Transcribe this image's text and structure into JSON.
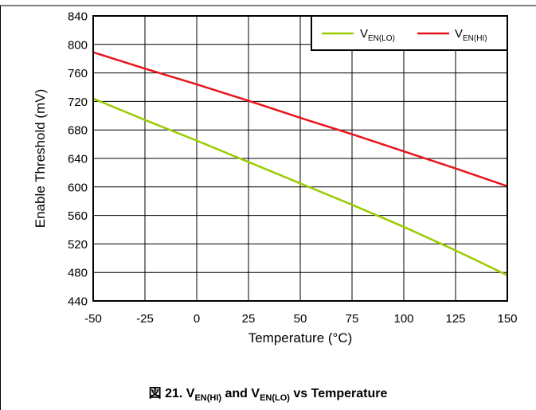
{
  "chart_data": {
    "type": "line",
    "xlabel": "Temperature (°C)",
    "ylabel": "Enable Threshold (mV)",
    "xlim": [
      -50,
      150
    ],
    "ylim": [
      440,
      840
    ],
    "xticks": [
      "-50",
      "-25",
      "0",
      "25",
      "50",
      "75",
      "100",
      "125",
      "150"
    ],
    "yticks": [
      "440",
      "480",
      "520",
      "560",
      "600",
      "640",
      "680",
      "720",
      "760",
      "800",
      "840"
    ],
    "grid": true,
    "legend_position": "top-right",
    "series": [
      {
        "name_main": "V",
        "name_sub": "EN(LO)",
        "color": "#99cc00",
        "x": [
          -50,
          -25,
          0,
          25,
          50,
          75,
          100,
          125,
          150
        ],
        "y": [
          724,
          694,
          665,
          635,
          605,
          575,
          544,
          511,
          476
        ]
      },
      {
        "name_main": "V",
        "name_sub": "EN(HI)",
        "color": "#e8141c",
        "x": [
          -50,
          -25,
          0,
          25,
          50,
          75,
          100,
          125,
          150
        ],
        "y": [
          789,
          766,
          744,
          721,
          697,
          674,
          650,
          626,
          601
        ]
      }
    ]
  },
  "caption": {
    "prefix": "図 21. V",
    "sub1": "EN(HI)",
    "mid": " and V",
    "sub2": "EN(LO)",
    "suffix": " vs Temperature"
  }
}
